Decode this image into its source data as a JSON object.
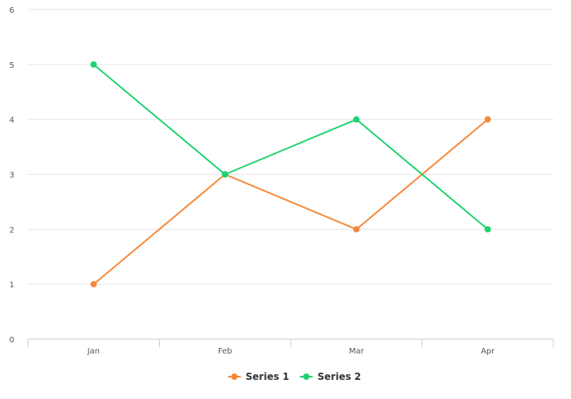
{
  "chart_data": {
    "type": "line",
    "categories": [
      "Jan",
      "Feb",
      "Mar",
      "Apr"
    ],
    "series": [
      {
        "name": "Series 1",
        "values": [
          1,
          3,
          2,
          4
        ],
        "color": "#f5873a"
      },
      {
        "name": "Series 2",
        "values": [
          5,
          3,
          4,
          2
        ],
        "color": "#1ed36f"
      }
    ],
    "y_ticks": [
      "0",
      "1",
      "2",
      "3",
      "4",
      "5",
      "6"
    ],
    "ylim": [
      0,
      6
    ],
    "grid": "horizontal",
    "legend_position": "bottom-center",
    "title": "",
    "xlabel": "",
    "ylabel": ""
  }
}
